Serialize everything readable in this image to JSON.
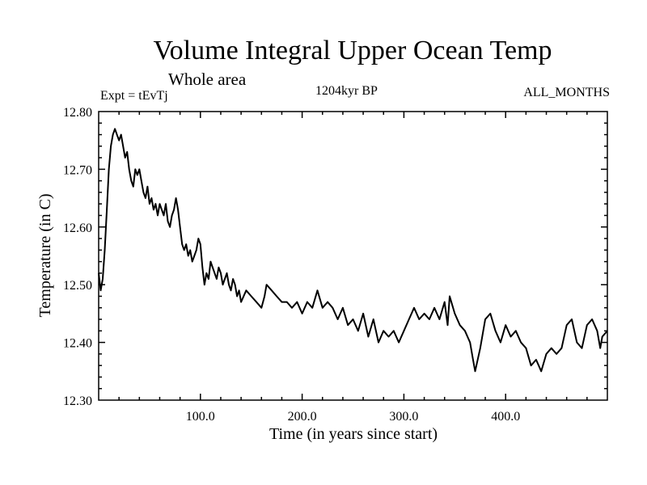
{
  "header": {
    "title": "Volume Integral Upper Ocean Temp",
    "subtitle": "Whole area",
    "experiment": "Expt = tEvTj",
    "era": "1204kyr BP",
    "months": "ALL_MONTHS"
  },
  "chart_data": {
    "type": "line",
    "title": "Volume Integral Upper Ocean Temp",
    "xlabel": "Time (in years since start)",
    "ylabel": "Temperature (in C)",
    "xlim": [
      0,
      500
    ],
    "ylim": [
      12.3,
      12.8
    ],
    "xticks": [
      100,
      200,
      300,
      400
    ],
    "xtick_labels": [
      "100.0",
      "200.0",
      "300.0",
      "400.0"
    ],
    "yticks": [
      12.3,
      12.4,
      12.5,
      12.6,
      12.7,
      12.8
    ],
    "ytick_labels": [
      "12.30",
      "12.40",
      "12.50",
      "12.60",
      "12.70",
      "12.80"
    ],
    "grid": false,
    "series": [
      {
        "name": "Volume integral upper ocean temperature",
        "x": [
          0,
          2,
          4,
          6,
          8,
          10,
          12,
          14,
          16,
          18,
          20,
          22,
          24,
          26,
          28,
          30,
          32,
          34,
          36,
          38,
          40,
          42,
          44,
          46,
          48,
          50,
          52,
          54,
          56,
          58,
          60,
          62,
          64,
          66,
          68,
          70,
          72,
          74,
          76,
          78,
          80,
          82,
          84,
          86,
          88,
          90,
          92,
          94,
          96,
          98,
          100,
          102,
          104,
          106,
          108,
          110,
          112,
          114,
          116,
          118,
          120,
          122,
          124,
          126,
          128,
          130,
          132,
          134,
          136,
          138,
          140,
          145,
          150,
          155,
          160,
          163,
          165,
          170,
          175,
          180,
          185,
          190,
          195,
          200,
          205,
          210,
          215,
          220,
          225,
          230,
          235,
          240,
          245,
          250,
          255,
          260,
          265,
          270,
          275,
          280,
          285,
          290,
          295,
          300,
          305,
          310,
          315,
          320,
          325,
          330,
          335,
          340,
          343,
          345,
          350,
          355,
          360,
          365,
          368,
          370,
          375,
          380,
          385,
          390,
          395,
          400,
          405,
          410,
          415,
          420,
          425,
          430,
          435,
          440,
          445,
          450,
          455,
          460,
          465,
          470,
          475,
          480,
          485,
          490,
          493,
          495,
          500
        ],
        "y": [
          12.52,
          12.49,
          12.51,
          12.56,
          12.63,
          12.7,
          12.74,
          12.76,
          12.77,
          12.76,
          12.75,
          12.76,
          12.74,
          12.72,
          12.73,
          12.7,
          12.68,
          12.67,
          12.7,
          12.69,
          12.7,
          12.68,
          12.66,
          12.65,
          12.67,
          12.64,
          12.65,
          12.63,
          12.64,
          12.62,
          12.64,
          12.63,
          12.62,
          12.64,
          12.61,
          12.6,
          12.62,
          12.63,
          12.65,
          12.63,
          12.6,
          12.57,
          12.56,
          12.57,
          12.55,
          12.56,
          12.54,
          12.55,
          12.56,
          12.58,
          12.57,
          12.53,
          12.5,
          12.52,
          12.51,
          12.54,
          12.53,
          12.52,
          12.51,
          12.53,
          12.52,
          12.5,
          12.51,
          12.52,
          12.5,
          12.49,
          12.51,
          12.5,
          12.48,
          12.49,
          12.47,
          12.49,
          12.48,
          12.47,
          12.46,
          12.48,
          12.5,
          12.49,
          12.48,
          12.47,
          12.47,
          12.46,
          12.47,
          12.45,
          12.47,
          12.46,
          12.49,
          12.46,
          12.47,
          12.46,
          12.44,
          12.46,
          12.43,
          12.44,
          12.42,
          12.45,
          12.41,
          12.44,
          12.4,
          12.42,
          12.41,
          12.42,
          12.4,
          12.42,
          12.44,
          12.46,
          12.44,
          12.45,
          12.44,
          12.46,
          12.44,
          12.47,
          12.43,
          12.48,
          12.45,
          12.43,
          12.42,
          12.4,
          12.37,
          12.35,
          12.39,
          12.44,
          12.45,
          12.42,
          12.4,
          12.43,
          12.41,
          12.42,
          12.4,
          12.39,
          12.36,
          12.37,
          12.35,
          12.38,
          12.39,
          12.38,
          12.39,
          12.43,
          12.44,
          12.4,
          12.39,
          12.43,
          12.44,
          12.42,
          12.39,
          12.41,
          12.42
        ]
      }
    ]
  }
}
